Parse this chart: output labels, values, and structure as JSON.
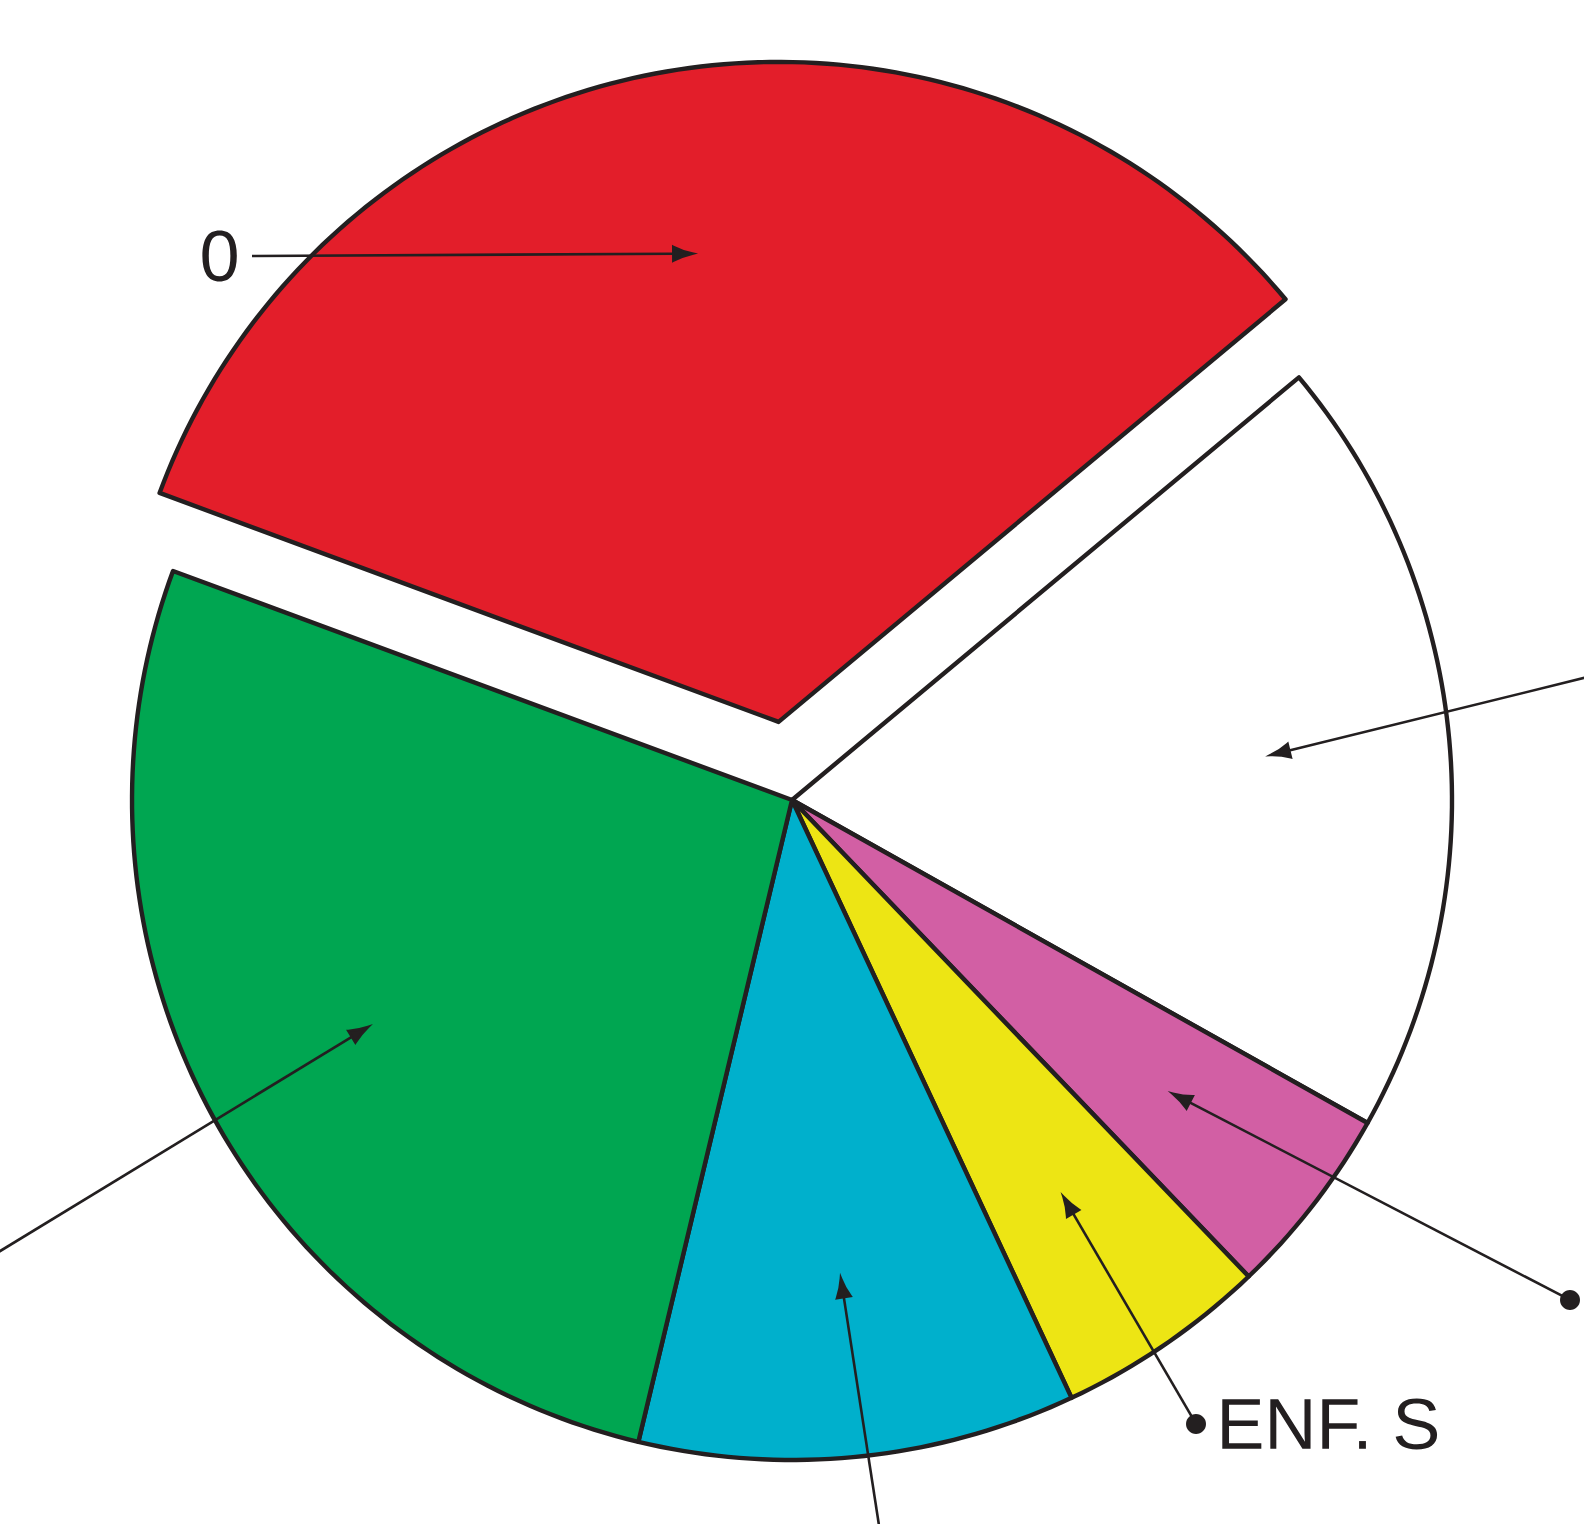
{
  "chart_data": {
    "type": "pie",
    "categories": [
      "0",
      null,
      null,
      "ENF. S",
      null,
      null
    ],
    "values": [
      33.3,
      19.2,
      4.7,
      5.2,
      10.7,
      26.9
    ],
    "colors": [
      "#e31e2a",
      "#ffffff",
      "#d25fa4",
      "#ede514",
      "#00b0cc",
      "#00a651"
    ]
  }
}
